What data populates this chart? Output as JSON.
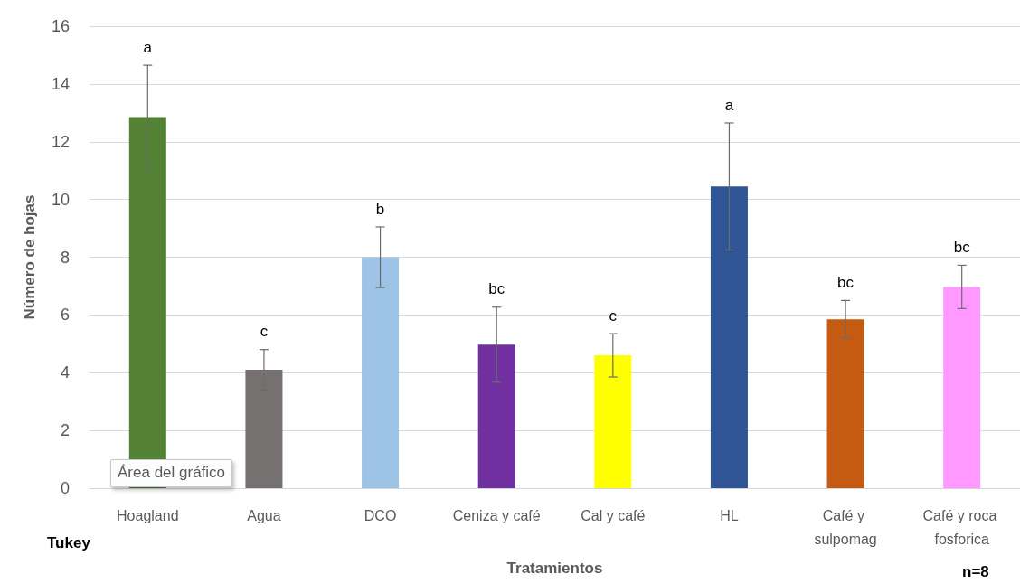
{
  "chart_data": {
    "type": "bar",
    "xlabel": "Tratamientos",
    "ylabel": "Número de hojas",
    "categories": [
      "Hoagland",
      "Agua",
      "DCO",
      "Ceniza y café",
      "Cal y café",
      "HL",
      "Café y sulpomag",
      "Café y roca fosforica"
    ],
    "values": [
      12.85,
      4.1,
      8.0,
      4.97,
      4.6,
      10.45,
      5.85,
      6.97
    ],
    "colors": [
      "#548235",
      "#767171",
      "#9dc3e6",
      "#7030a0",
      "#ffff00",
      "#2f5597",
      "#c55a11",
      "#ff99ff"
    ],
    "errors": [
      1.8,
      0.7,
      1.05,
      1.3,
      0.75,
      2.2,
      0.65,
      0.75
    ],
    "ylim": [
      0,
      16
    ],
    "yticks": [
      0,
      2,
      4,
      6,
      8,
      10,
      12,
      14,
      16
    ],
    "grid": "y",
    "annotations": [
      "a",
      "c",
      "b",
      "bc",
      "c",
      "a",
      "bc",
      "bc",
      "Tukey",
      "n=8",
      "Área del gráfico"
    ]
  }
}
